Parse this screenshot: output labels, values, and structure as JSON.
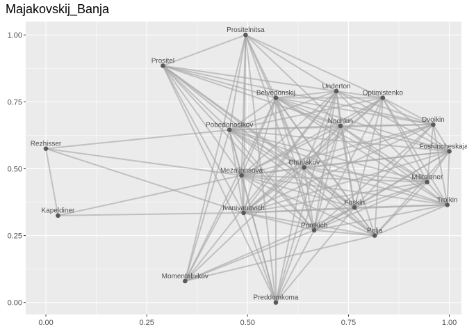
{
  "chart_data": {
    "type": "network",
    "title": "Majakovskij_Banja",
    "xlabel": "",
    "ylabel": "",
    "xlim": [
      -0.05,
      1.03
    ],
    "ylim": [
      -0.045,
      1.05
    ],
    "x_ticks": [
      0.0,
      0.25,
      0.5,
      0.75,
      1.0
    ],
    "x_tick_labels": [
      "0.00",
      "0.25",
      "0.50",
      "0.75",
      "1.00"
    ],
    "y_ticks": [
      0.0,
      0.25,
      0.5,
      0.75,
      1.0
    ],
    "y_tick_labels": [
      "0.00",
      "0.25",
      "0.50",
      "0.75",
      "1.00"
    ],
    "grid": true,
    "legend": "none",
    "colors": {
      "panel": "#ebebeb",
      "grid": "#ffffff",
      "edge": "#a6a6a6",
      "node": "#595959",
      "text": "#4d4d4d"
    },
    "nodes": [
      {
        "name": "Prositelnitsa",
        "x": 0.495,
        "y": 1.0
      },
      {
        "name": "Prositel",
        "x": 0.29,
        "y": 0.885
      },
      {
        "name": "Underton",
        "x": 0.72,
        "y": 0.79
      },
      {
        "name": "Belvedonskij",
        "x": 0.57,
        "y": 0.765
      },
      {
        "name": "Optimistenko",
        "x": 0.835,
        "y": 0.765
      },
      {
        "name": "Dvoikin",
        "x": 0.96,
        "y": 0.665
      },
      {
        "name": "Nochkin",
        "x": 0.73,
        "y": 0.66
      },
      {
        "name": "Pobedonosikov",
        "x": 0.455,
        "y": 0.645
      },
      {
        "name": "Rezhisser",
        "x": 0.0,
        "y": 0.575
      },
      {
        "name": "Fosforicheskajazhe",
        "x": 1.0,
        "y": 0.565
      },
      {
        "name": "Chudakov",
        "x": 0.64,
        "y": 0.505
      },
      {
        "name": "Mezaljansova",
        "x": 0.485,
        "y": 0.475
      },
      {
        "name": "Militsioner",
        "x": 0.945,
        "y": 0.45
      },
      {
        "name": "Troikin",
        "x": 0.995,
        "y": 0.365
      },
      {
        "name": "Foskin",
        "x": 0.765,
        "y": 0.355
      },
      {
        "name": "Ivanivanovich",
        "x": 0.49,
        "y": 0.335
      },
      {
        "name": "Kapeldiner",
        "x": 0.03,
        "y": 0.325
      },
      {
        "name": "Pontkich",
        "x": 0.665,
        "y": 0.27
      },
      {
        "name": "Polja",
        "x": 0.815,
        "y": 0.25
      },
      {
        "name": "Momentalnikov",
        "x": 0.345,
        "y": 0.08
      },
      {
        "name": "Preddomkoma",
        "x": 0.57,
        "y": 0.0
      }
    ],
    "edges": [
      [
        "Prositelnitsa",
        "Prositel"
      ],
      [
        "Prositelnitsa",
        "Underton"
      ],
      [
        "Prositelnitsa",
        "Belvedonskij"
      ],
      [
        "Prositelnitsa",
        "Optimistenko"
      ],
      [
        "Prositelnitsa",
        "Nochkin"
      ],
      [
        "Prositelnitsa",
        "Pobedonosikov"
      ],
      [
        "Prositelnitsa",
        "Mezaljansova"
      ],
      [
        "Prositelnitsa",
        "Chudakov"
      ],
      [
        "Prositelnitsa",
        "Ivanivanovich"
      ],
      [
        "Prositelnitsa",
        "Momentalnikov"
      ],
      [
        "Prositelnitsa",
        "Pontkich"
      ],
      [
        "Prositelnitsa",
        "Preddomkoma"
      ],
      [
        "Prositel",
        "Underton"
      ],
      [
        "Prositel",
        "Belvedonskij"
      ],
      [
        "Prositel",
        "Nochkin"
      ],
      [
        "Prositel",
        "Pobedonosikov"
      ],
      [
        "Prositel",
        "Mezaljansova"
      ],
      [
        "Prositel",
        "Chudakov"
      ],
      [
        "Prositel",
        "Ivanivanovich"
      ],
      [
        "Prositel",
        "Foskin"
      ],
      [
        "Prositel",
        "Polja"
      ],
      [
        "Prositel",
        "Pontkich"
      ],
      [
        "Prositel",
        "Preddomkoma"
      ],
      [
        "Prositel",
        "Dvoikin"
      ],
      [
        "Underton",
        "Belvedonskij"
      ],
      [
        "Underton",
        "Optimistenko"
      ],
      [
        "Underton",
        "Nochkin"
      ],
      [
        "Underton",
        "Pobedonosikov"
      ],
      [
        "Underton",
        "Mezaljansova"
      ],
      [
        "Underton",
        "Chudakov"
      ],
      [
        "Underton",
        "Ivanivanovich"
      ],
      [
        "Underton",
        "Foskin"
      ],
      [
        "Underton",
        "Dvoikin"
      ],
      [
        "Underton",
        "Fosforicheskajazhe"
      ],
      [
        "Underton",
        "Militsioner"
      ],
      [
        "Underton",
        "Preddomkoma"
      ],
      [
        "Underton",
        "Pontkich"
      ],
      [
        "Underton",
        "Momentalnikov"
      ],
      [
        "Belvedonskij",
        "Optimistenko"
      ],
      [
        "Belvedonskij",
        "Nochkin"
      ],
      [
        "Belvedonskij",
        "Pobedonosikov"
      ],
      [
        "Belvedonskij",
        "Mezaljansova"
      ],
      [
        "Belvedonskij",
        "Chudakov"
      ],
      [
        "Belvedonskij",
        "Ivanivanovich"
      ],
      [
        "Belvedonskij",
        "Foskin"
      ],
      [
        "Belvedonskij",
        "Dvoikin"
      ],
      [
        "Belvedonskij",
        "Fosforicheskajazhe"
      ],
      [
        "Belvedonskij",
        "Militsioner"
      ],
      [
        "Belvedonskij",
        "Troikin"
      ],
      [
        "Belvedonskij",
        "Polja"
      ],
      [
        "Belvedonskij",
        "Pontkich"
      ],
      [
        "Belvedonskij",
        "Momentalnikov"
      ],
      [
        "Belvedonskij",
        "Preddomkoma"
      ],
      [
        "Optimistenko",
        "Nochkin"
      ],
      [
        "Optimistenko",
        "Pobedonosikov"
      ],
      [
        "Optimistenko",
        "Dvoikin"
      ],
      [
        "Optimistenko",
        "Mezaljansova"
      ],
      [
        "Optimistenko",
        "Chudakov"
      ],
      [
        "Optimistenko",
        "Ivanivanovich"
      ],
      [
        "Optimistenko",
        "Foskin"
      ],
      [
        "Optimistenko",
        "Fosforicheskajazhe"
      ],
      [
        "Optimistenko",
        "Militsioner"
      ],
      [
        "Optimistenko",
        "Troikin"
      ],
      [
        "Optimistenko",
        "Pontkich"
      ],
      [
        "Optimistenko",
        "Polja"
      ],
      [
        "Dvoikin",
        "Nochkin"
      ],
      [
        "Dvoikin",
        "Pobedonosikov"
      ],
      [
        "Dvoikin",
        "Mezaljansova"
      ],
      [
        "Dvoikin",
        "Chudakov"
      ],
      [
        "Dvoikin",
        "Fosforicheskajazhe"
      ],
      [
        "Dvoikin",
        "Militsioner"
      ],
      [
        "Dvoikin",
        "Troikin"
      ],
      [
        "Dvoikin",
        "Foskin"
      ],
      [
        "Dvoikin",
        "Ivanivanovich"
      ],
      [
        "Dvoikin",
        "Pontkich"
      ],
      [
        "Nochkin",
        "Pobedonosikov"
      ],
      [
        "Nochkin",
        "Mezaljansova"
      ],
      [
        "Nochkin",
        "Chudakov"
      ],
      [
        "Nochkin",
        "Fosforicheskajazhe"
      ],
      [
        "Nochkin",
        "Militsioner"
      ],
      [
        "Nochkin",
        "Troikin"
      ],
      [
        "Nochkin",
        "Foskin"
      ],
      [
        "Nochkin",
        "Ivanivanovich"
      ],
      [
        "Nochkin",
        "Pontkich"
      ],
      [
        "Nochkin",
        "Polja"
      ],
      [
        "Nochkin",
        "Preddomkoma"
      ],
      [
        "Pobedonosikov",
        "Rezhisser"
      ],
      [
        "Pobedonosikov",
        "Mezaljansova"
      ],
      [
        "Pobedonosikov",
        "Chudakov"
      ],
      [
        "Pobedonosikov",
        "Fosforicheskajazhe"
      ],
      [
        "Pobedonosikov",
        "Militsioner"
      ],
      [
        "Pobedonosikov",
        "Troikin"
      ],
      [
        "Pobedonosikov",
        "Foskin"
      ],
      [
        "Pobedonosikov",
        "Ivanivanovich"
      ],
      [
        "Pobedonosikov",
        "Pontkich"
      ],
      [
        "Pobedonosikov",
        "Polja"
      ],
      [
        "Pobedonosikov",
        "Momentalnikov"
      ],
      [
        "Pobedonosikov",
        "Preddomkoma"
      ],
      [
        "Rezhisser",
        "Kapeldiner"
      ],
      [
        "Rezhisser",
        "Mezaljansova"
      ],
      [
        "Rezhisser",
        "Ivanivanovich"
      ],
      [
        "Fosforicheskajazhe",
        "Mezaljansova"
      ],
      [
        "Fosforicheskajazhe",
        "Chudakov"
      ],
      [
        "Fosforicheskajazhe",
        "Militsioner"
      ],
      [
        "Fosforicheskajazhe",
        "Troikin"
      ],
      [
        "Fosforicheskajazhe",
        "Foskin"
      ],
      [
        "Fosforicheskajazhe",
        "Ivanivanovich"
      ],
      [
        "Fosforicheskajazhe",
        "Pontkich"
      ],
      [
        "Fosforicheskajazhe",
        "Polja"
      ],
      [
        "Chudakov",
        "Mezaljansova"
      ],
      [
        "Chudakov",
        "Militsioner"
      ],
      [
        "Chudakov",
        "Troikin"
      ],
      [
        "Chudakov",
        "Foskin"
      ],
      [
        "Chudakov",
        "Ivanivanovich"
      ],
      [
        "Chudakov",
        "Pontkich"
      ],
      [
        "Chudakov",
        "Polja"
      ],
      [
        "Chudakov",
        "Momentalnikov"
      ],
      [
        "Chudakov",
        "Preddomkoma"
      ],
      [
        "Mezaljansova",
        "Militsioner"
      ],
      [
        "Mezaljansova",
        "Troikin"
      ],
      [
        "Mezaljansova",
        "Foskin"
      ],
      [
        "Mezaljansova",
        "Ivanivanovich"
      ],
      [
        "Mezaljansova",
        "Kapeldiner"
      ],
      [
        "Mezaljansova",
        "Pontkich"
      ],
      [
        "Mezaljansova",
        "Polja"
      ],
      [
        "Mezaljansova",
        "Momentalnikov"
      ],
      [
        "Mezaljansova",
        "Preddomkoma"
      ],
      [
        "Militsioner",
        "Troikin"
      ],
      [
        "Militsioner",
        "Foskin"
      ],
      [
        "Militsioner",
        "Ivanivanovich"
      ],
      [
        "Militsioner",
        "Pontkich"
      ],
      [
        "Militsioner",
        "Polja"
      ],
      [
        "Troikin",
        "Foskin"
      ],
      [
        "Troikin",
        "Ivanivanovich"
      ],
      [
        "Troikin",
        "Pontkich"
      ],
      [
        "Troikin",
        "Polja"
      ],
      [
        "Foskin",
        "Ivanivanovich"
      ],
      [
        "Foskin",
        "Pontkich"
      ],
      [
        "Foskin",
        "Polja"
      ],
      [
        "Foskin",
        "Momentalnikov"
      ],
      [
        "Foskin",
        "Preddomkoma"
      ],
      [
        "Ivanivanovich",
        "Kapeldiner"
      ],
      [
        "Ivanivanovich",
        "Pontkich"
      ],
      [
        "Ivanivanovich",
        "Polja"
      ],
      [
        "Ivanivanovich",
        "Preddomkoma"
      ],
      [
        "Pontkich",
        "Polja"
      ],
      [
        "Pontkich",
        "Momentalnikov"
      ],
      [
        "Pontkich",
        "Preddomkoma"
      ],
      [
        "Polja",
        "Momentalnikov"
      ]
    ]
  }
}
